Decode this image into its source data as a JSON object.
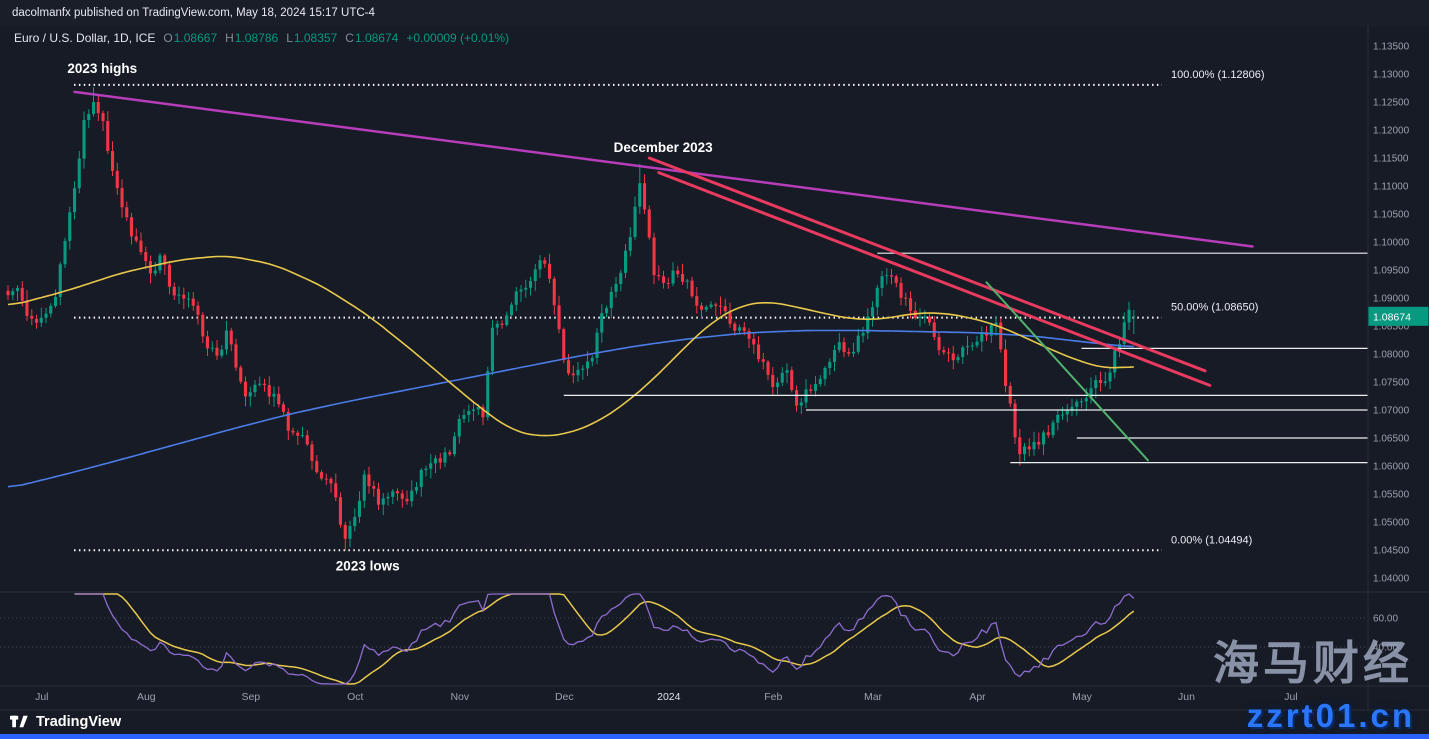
{
  "topbar": {
    "publish_text": "dacolmanfx published on TradingView.com, May 18, 2024 15:17 UTC-4"
  },
  "symbol_bar": {
    "title": "Euro / U.S. Dollar, 1D, ICE",
    "o_label": "O",
    "o_value": "1.08667",
    "h_label": "H",
    "h_value": "1.08786",
    "l_label": "L",
    "l_value": "1.08357",
    "c_label": "C",
    "c_value": "1.08674",
    "change": "+0.00009 (+0.01%)"
  },
  "colors": {
    "background": "#161b25",
    "up": "#089981",
    "down": "#f23645",
    "ma_yellow": "#e9c94c",
    "ma_blue": "#4b7ce8",
    "rsi_purple": "#8e6cd0",
    "rsi_yellow": "#e9c94c",
    "trend_magenta": "#b83dba",
    "trend_red": "#e93a5f",
    "trend_green": "#53b16e",
    "sr_white": "#fafafa",
    "fib_white": "#ffffff",
    "axis_text": "#9aa0ac",
    "year_text": "#dfe2ea",
    "separator": "#2a2e39",
    "tag_bg": "#089981",
    "accent_blue": "#2962ff"
  },
  "price_axis": {
    "min": 1.04,
    "max": 1.135,
    "step": 0.005,
    "decimals": 5,
    "last_price": "1.08674"
  },
  "time_axis": {
    "labels": [
      {
        "text": "Jul",
        "day": 5
      },
      {
        "text": "Aug",
        "day": 27
      },
      {
        "text": "Sep",
        "day": 49
      },
      {
        "text": "Oct",
        "day": 71
      },
      {
        "text": "Nov",
        "day": 93
      },
      {
        "text": "Dec",
        "day": 115
      },
      {
        "text": "2024",
        "day": 137,
        "year": true
      },
      {
        "text": "Feb",
        "day": 159
      },
      {
        "text": "Mar",
        "day": 180
      },
      {
        "text": "Apr",
        "day": 202
      },
      {
        "text": "May",
        "day": 224
      },
      {
        "text": "Jun",
        "day": 246
      },
      {
        "text": "Jul",
        "day": 268
      }
    ]
  },
  "indicator_axis": {
    "labels": [
      {
        "text": "60.00",
        "value": 60
      },
      {
        "text": "40.00",
        "value": 40
      }
    ]
  },
  "chart_data": {
    "type": "candlestick",
    "symbol": "Euro / U.S. Dollar",
    "interval": "1D",
    "exchange": "ICE",
    "ylim": [
      1.04,
      1.135
    ],
    "n_days": 238,
    "ohlc_last": {
      "o": 1.08667,
      "h": 1.08786,
      "l": 1.08357,
      "c": 1.08674
    },
    "close_anchors": [
      [
        0,
        1.0905
      ],
      [
        2,
        1.0918
      ],
      [
        4,
        1.0868
      ],
      [
        6,
        1.0856
      ],
      [
        8,
        1.0872
      ],
      [
        10,
        1.0902
      ],
      [
        12,
        1.1002
      ],
      [
        14,
        1.1096
      ],
      [
        16,
        1.1218
      ],
      [
        18,
        1.125
      ],
      [
        20,
        1.1216
      ],
      [
        22,
        1.1127
      ],
      [
        24,
        1.1062
      ],
      [
        26,
        1.101
      ],
      [
        28,
        1.0982
      ],
      [
        30,
        1.0944
      ],
      [
        32,
        1.0976
      ],
      [
        34,
        1.092
      ],
      [
        36,
        1.0906
      ],
      [
        38,
        1.0899
      ],
      [
        40,
        1.087
      ],
      [
        42,
        1.081
      ],
      [
        44,
        1.0797
      ],
      [
        46,
        1.0842
      ],
      [
        48,
        1.0776
      ],
      [
        50,
        1.0724
      ],
      [
        53,
        1.0747
      ],
      [
        56,
        1.0729
      ],
      [
        59,
        1.0663
      ],
      [
        62,
        1.0655
      ],
      [
        65,
        1.0589
      ],
      [
        68,
        1.0569
      ],
      [
        71,
        1.047
      ],
      [
        73,
        1.0509
      ],
      [
        75,
        1.0585
      ],
      [
        78,
        1.0531
      ],
      [
        81,
        1.0555
      ],
      [
        84,
        1.0537
      ],
      [
        87,
        1.0593
      ],
      [
        90,
        1.0614
      ],
      [
        93,
        1.0621
      ],
      [
        95,
        1.0684
      ],
      [
        98,
        1.0701
      ],
      [
        100,
        1.0687
      ],
      [
        102,
        1.0847
      ],
      [
        105,
        1.0869
      ],
      [
        108,
        1.0915
      ],
      [
        111,
        1.0951
      ],
      [
        113,
        1.0961
      ],
      [
        115,
        1.0887
      ],
      [
        117,
        1.0789
      ],
      [
        119,
        1.0762
      ],
      [
        121,
        1.0774
      ],
      [
        123,
        1.0793
      ],
      [
        125,
        1.0873
      ],
      [
        127,
        1.0911
      ],
      [
        129,
        1.0945
      ],
      [
        131,
        1.1009
      ],
      [
        133,
        1.1105
      ],
      [
        134,
        1.1058
      ],
      [
        136,
        1.0941
      ],
      [
        138,
        1.0927
      ],
      [
        140,
        1.0949
      ],
      [
        143,
        1.0931
      ],
      [
        146,
        1.0879
      ],
      [
        149,
        1.0886
      ],
      [
        152,
        1.0854
      ],
      [
        155,
        1.0841
      ],
      [
        157,
        1.0817
      ],
      [
        159,
        1.0786
      ],
      [
        161,
        1.0741
      ],
      [
        164,
        1.0771
      ],
      [
        166,
        1.0708
      ],
      [
        169,
        1.0734
      ],
      [
        172,
        1.0775
      ],
      [
        175,
        1.0821
      ],
      [
        178,
        1.0804
      ],
      [
        181,
        1.0867
      ],
      [
        184,
        1.0939
      ],
      [
        187,
        1.0927
      ],
      [
        190,
        1.0877
      ],
      [
        193,
        1.0867
      ],
      [
        196,
        1.0807
      ],
      [
        199,
        1.0789
      ],
      [
        202,
        1.0814
      ],
      [
        205,
        1.0839
      ],
      [
        208,
        1.0856
      ],
      [
        210,
        1.0743
      ],
      [
        213,
        1.0621
      ],
      [
        216,
        1.0643
      ],
      [
        219,
        1.0655
      ],
      [
        222,
        1.0692
      ],
      [
        225,
        1.0715
      ],
      [
        228,
        1.0739
      ],
      [
        231,
        1.0751
      ],
      [
        234,
        1.0818
      ],
      [
        236,
        1.0879
      ],
      [
        237,
        1.08674
      ]
    ],
    "extremes": [
      {
        "day": 18,
        "high": 1.12764
      },
      {
        "day": 71,
        "low": 1.04482
      },
      {
        "day": 133,
        "high": 1.11394
      },
      {
        "day": 213,
        "low": 1.06007
      },
      {
        "day": 236,
        "high": 1.08931
      }
    ],
    "ma_yellow_anchors": [
      [
        0,
        1.0885
      ],
      [
        12,
        1.0912
      ],
      [
        24,
        1.0945
      ],
      [
        36,
        1.0968
      ],
      [
        46,
        1.0976
      ],
      [
        56,
        1.096
      ],
      [
        66,
        1.0922
      ],
      [
        76,
        1.0868
      ],
      [
        86,
        1.08
      ],
      [
        94,
        1.0742
      ],
      [
        100,
        1.07
      ],
      [
        106,
        1.0664
      ],
      [
        112,
        1.0652
      ],
      [
        118,
        1.0658
      ],
      [
        124,
        1.0678
      ],
      [
        130,
        1.0712
      ],
      [
        136,
        1.0756
      ],
      [
        142,
        1.0808
      ],
      [
        148,
        1.0856
      ],
      [
        154,
        1.0886
      ],
      [
        160,
        1.0894
      ],
      [
        166,
        1.0884
      ],
      [
        172,
        1.0872
      ],
      [
        178,
        1.0862
      ],
      [
        184,
        1.0862
      ],
      [
        190,
        1.0872
      ],
      [
        196,
        1.0874
      ],
      [
        202,
        1.0866
      ],
      [
        208,
        1.0852
      ],
      [
        214,
        1.083
      ],
      [
        220,
        1.0806
      ],
      [
        226,
        1.0786
      ],
      [
        230,
        1.0776
      ],
      [
        234,
        1.0774
      ],
      [
        237,
        1.078
      ]
    ],
    "ma_blue_anchors": [
      [
        0,
        1.056
      ],
      [
        12,
        1.0585
      ],
      [
        24,
        1.0612
      ],
      [
        36,
        1.064
      ],
      [
        48,
        1.0668
      ],
      [
        60,
        1.0694
      ],
      [
        72,
        1.0716
      ],
      [
        84,
        1.0736
      ],
      [
        96,
        1.0756
      ],
      [
        108,
        1.0776
      ],
      [
        120,
        1.0796
      ],
      [
        132,
        1.0814
      ],
      [
        144,
        1.0828
      ],
      [
        156,
        1.0838
      ],
      [
        168,
        1.0842
      ],
      [
        180,
        1.0842
      ],
      [
        192,
        1.084
      ],
      [
        204,
        1.0838
      ],
      [
        216,
        1.0832
      ],
      [
        226,
        1.0822
      ],
      [
        237,
        1.0812
      ]
    ],
    "fib_levels": [
      {
        "label": "100.00% (1.12806)",
        "value": 1.12806
      },
      {
        "label": "50.00% (1.08650)",
        "value": 1.0865
      },
      {
        "label": "0.00% (1.04494)",
        "value": 1.04494
      }
    ],
    "sr_lines": [
      {
        "price": 1.098,
        "start_day": 183
      },
      {
        "price": 1.081,
        "start_day": 226
      },
      {
        "price": 1.0726,
        "start_day": 117
      },
      {
        "price": 1.07,
        "start_day": 168
      },
      {
        "price": 1.065,
        "start_day": 225
      },
      {
        "price": 1.0606,
        "start_day": 211
      }
    ],
    "trendlines": [
      {
        "name": "downtrend-from-2023-highs",
        "d1": 14,
        "p1": 1.1268,
        "d2": 262,
        "p2": 1.0992,
        "color_key": "trend_magenta",
        "width": 2.5
      },
      {
        "name": "downtrend-dec-upper",
        "d1": 135,
        "p1": 1.115,
        "d2": 252,
        "p2": 1.077,
        "color_key": "trend_red",
        "width": 3
      },
      {
        "name": "downtrend-dec-lower",
        "d1": 137,
        "p1": 1.1124,
        "d2": 253,
        "p2": 1.0744,
        "color_key": "trend_red",
        "width": 3
      },
      {
        "name": "short-green-downtrend",
        "d1": 206,
        "p1": 1.0928,
        "d2": 240,
        "p2": 1.061,
        "color_key": "trend_green",
        "width": 2
      }
    ],
    "annotations": [
      {
        "text": "2023 highs",
        "day": 12.5,
        "price": 1.1302
      },
      {
        "text": "December 2023",
        "day": 127.5,
        "price": 1.1161
      },
      {
        "text": "2023 lows",
        "day": 69,
        "price": 1.0413
      }
    ],
    "indicator": {
      "name": "RSI",
      "period": 14,
      "smooth": 10,
      "levels": [
        60,
        40
      ]
    }
  },
  "watermark": {
    "line1": "海马财经",
    "line2": "zzrt01.cn"
  },
  "footer": {
    "brand": "TradingView"
  }
}
